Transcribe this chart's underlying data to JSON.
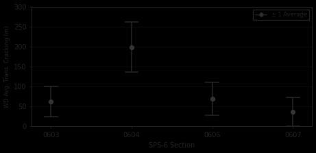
{
  "sections": [
    "0603",
    "0604",
    "0606",
    "0607"
  ],
  "means": [
    62,
    198,
    69,
    36
  ],
  "std_upper": [
    100,
    261,
    110,
    72
  ],
  "std_lower": [
    24,
    136,
    28,
    1
  ],
  "ylabel": "WD Avg. Trans. Cracking (m)",
  "xlabel": "SPS-6 Section",
  "legend_label": "± 1 Average",
  "ylim_min": 0,
  "ylim_max": 300,
  "yticks": [
    0,
    50,
    100,
    150,
    200,
    250,
    300
  ],
  "background_color": "#000000",
  "text_color": "#222222",
  "bar_color": "#222222",
  "dot_color": "#333333",
  "grid_color": "#111111",
  "axis_color": "#222222",
  "legend_bg": "#000000",
  "legend_edge": "#222222"
}
